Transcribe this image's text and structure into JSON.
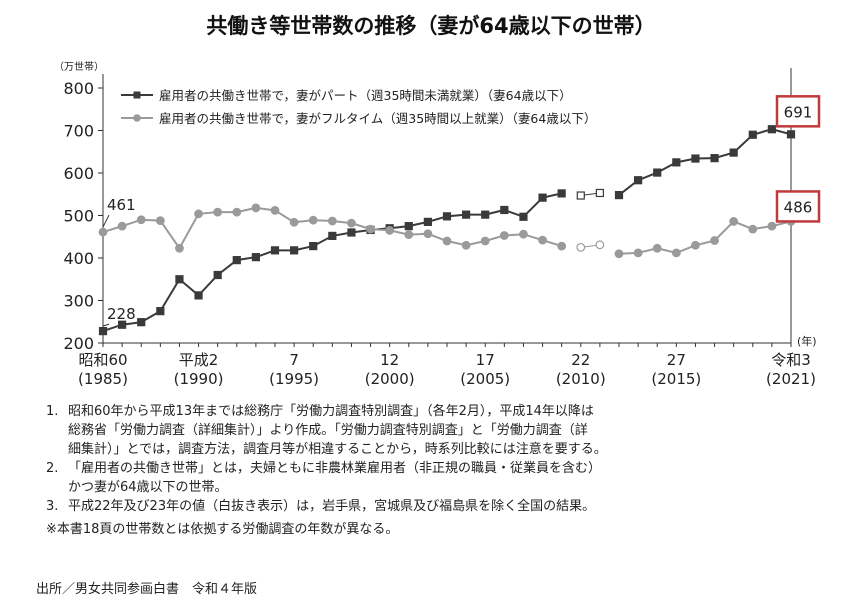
{
  "title": "共働き等世帯数の推移（妻が64歳以下の世帯）",
  "colors": {
    "part_series": "#3a3a3a",
    "full_series": "#9a9a9a",
    "highlight_box": "#c0393b",
    "axis": "#333333"
  },
  "chart_data": {
    "type": "line",
    "y_unit_label": "（万世帯）",
    "x_unit_label": "(年)",
    "ylim": [
      200,
      800
    ],
    "yticks": [
      200,
      300,
      400,
      500,
      600,
      700,
      800
    ],
    "xlim": [
      1985,
      2021
    ],
    "x_ticks": [
      {
        "year": 1985,
        "era": "昭和60",
        "western": "(1985)"
      },
      {
        "year": 1990,
        "era": "平成2",
        "western": "(1990)"
      },
      {
        "year": 1995,
        "era": "7",
        "western": "(1995)"
      },
      {
        "year": 2000,
        "era": "12",
        "western": "(2000)"
      },
      {
        "year": 2005,
        "era": "17",
        "western": "(2005)"
      },
      {
        "year": 2010,
        "era": "22",
        "western": "(2010)"
      },
      {
        "year": 2015,
        "era": "27",
        "western": "(2015)"
      },
      {
        "year": 2021,
        "era": "令和3",
        "western": "(2021)"
      }
    ],
    "grid": false,
    "legend_position": "top-left",
    "series": [
      {
        "name": "雇用者の共働き世帯で，妻がパート（週35時間未満就業）（妻64歳以下）",
        "marker": "square",
        "x": [
          1985,
          1986,
          1987,
          1988,
          1989,
          1990,
          1991,
          1992,
          1993,
          1994,
          1995,
          1996,
          1997,
          1998,
          1999,
          2000,
          2001,
          2002,
          2003,
          2004,
          2005,
          2006,
          2007,
          2008,
          2009,
          2010,
          2011,
          2012,
          2013,
          2014,
          2015,
          2016,
          2017,
          2018,
          2019,
          2020,
          2021
        ],
        "values": [
          228,
          243,
          249,
          275,
          350,
          312,
          360,
          395,
          402,
          418,
          418,
          428,
          452,
          460,
          466,
          470,
          475,
          485,
          498,
          502,
          502,
          513,
          497,
          542,
          552,
          547,
          553,
          548,
          583,
          601,
          625,
          634,
          635,
          648,
          690,
          703,
          691
        ],
        "hollow": [
          2010,
          2011
        ]
      },
      {
        "name": "雇用者の共働き世帯で，妻がフルタイム（週35時間以上就業）（妻64歳以下）",
        "marker": "circle",
        "x": [
          1985,
          1986,
          1987,
          1988,
          1989,
          1990,
          1991,
          1992,
          1993,
          1994,
          1995,
          1996,
          1997,
          1998,
          1999,
          2000,
          2001,
          2002,
          2003,
          2004,
          2005,
          2006,
          2007,
          2008,
          2009,
          2010,
          2011,
          2012,
          2013,
          2014,
          2015,
          2016,
          2017,
          2018,
          2019,
          2020,
          2021
        ],
        "values": [
          461,
          475,
          490,
          488,
          423,
          504,
          508,
          508,
          518,
          512,
          484,
          489,
          487,
          482,
          468,
          465,
          455,
          457,
          440,
          430,
          440,
          453,
          456,
          442,
          428,
          425,
          431,
          410,
          412,
          423,
          412,
          430,
          441,
          486,
          468,
          475,
          486
        ],
        "hollow": [
          2010,
          2011
        ]
      }
    ],
    "annotations": [
      {
        "text": "461",
        "year": 1985,
        "series": 1
      },
      {
        "text": "228",
        "year": 1985,
        "series": 0
      },
      {
        "text": "691",
        "year": 2021,
        "series": 0,
        "boxed": true
      },
      {
        "text": "486",
        "year": 2021,
        "series": 1,
        "boxed": true
      }
    ]
  },
  "notes": [
    {
      "num": "1.",
      "text": "昭和60年から平成13年までは総務庁「労働力調査特別調査」（各年2月），平成14年以降は\n総務省「労働力調査（詳細集計）」より作成。「労働力調査特別調査」と「労働力調査（詳\n細集計）」とでは，調査方法，調査月等が相違することから，時系列比較には注意を要する。"
    },
    {
      "num": "2.",
      "text": "「雇用者の共働き世帯」とは，夫婦ともに非農林業雇用者（非正規の職員・従業員を含む）\nかつ妻が64歳以下の世帯。"
    },
    {
      "num": "3.",
      "text": "平成22年及び23年の値（白抜き表示）は，岩手県，宮城県及び福島県を除く全国の結果。"
    }
  ],
  "note_star": "※本書18頁の世帯数とは依拠する労働調査の年数が異なる。",
  "source": "出所／男女共同参画白書　令和４年版"
}
